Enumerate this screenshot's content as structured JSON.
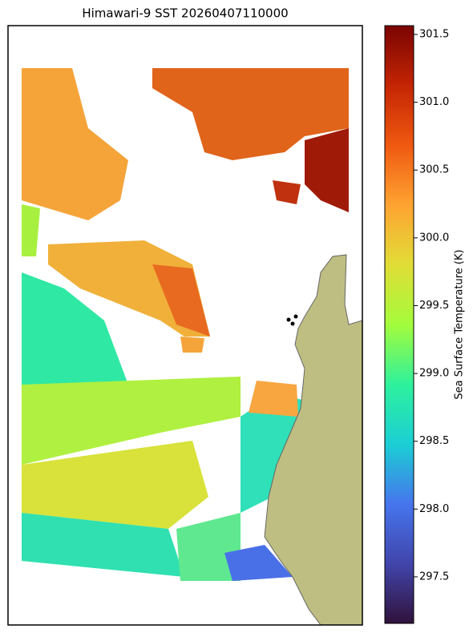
{
  "map": {
    "title": "Himawari-9 SST 20260407110000",
    "colorbar": {
      "label": "Sea Surface Temperature (K)",
      "lim": [
        297.157,
        301.565
      ],
      "ticks": [
        297.5,
        {
          "value": 298,
          "label": "298.0"
        },
        298.5,
        {
          "value": 299,
          "label": "299.0"
        },
        299.5,
        {
          "value": 300,
          "label": "300.0"
        },
        300.5,
        {
          "value": 301,
          "label": "301.0"
        },
        301.5
      ]
    }
  }
}
